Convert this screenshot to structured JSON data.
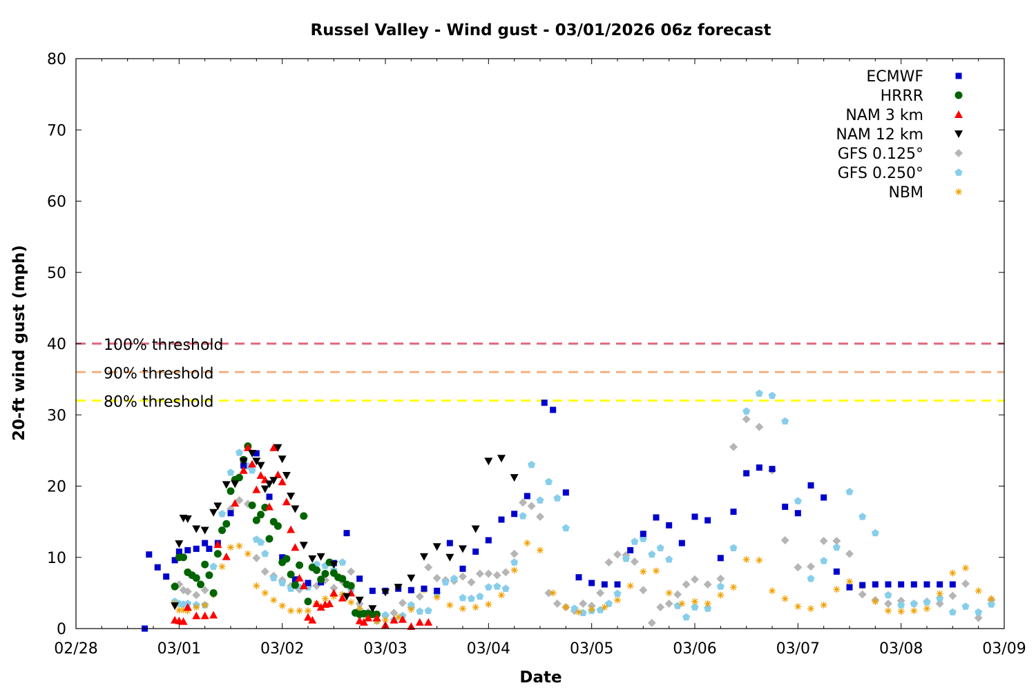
{
  "chart_data": {
    "type": "scatter",
    "title": "Russel Valley - Wind gust - 03/01/2026 06z forecast",
    "xlabel": "Date",
    "ylabel": "20-ft wind gust (mph)",
    "xlim": [
      "02/28 00:00",
      "03/09 00:00"
    ],
    "ylim": [
      0,
      80
    ],
    "x_ticks": [
      "02/28",
      "03/01",
      "03/02",
      "03/03",
      "03/04",
      "03/05",
      "03/06",
      "03/07",
      "03/08",
      "03/09"
    ],
    "y_ticks": [
      "0",
      "10",
      "20",
      "30",
      "40",
      "50",
      "60",
      "70",
      "80"
    ],
    "legend_position": "top-right",
    "thresholds": [
      {
        "label": "100% threshold",
        "value": 40,
        "color": "#e0667a"
      },
      {
        "label": "90% threshold",
        "value": 36,
        "color": "#f4b183"
      },
      {
        "label": "80% threshold",
        "value": 32,
        "color": "#ffff00"
      }
    ],
    "series": [
      {
        "name": "ECMWF",
        "marker": "square",
        "color": "#0000cc",
        "x": [
          "02/28 16:00",
          "02/28 17:00",
          "02/28 19:00",
          "02/28 21:00",
          "02/28 23:00",
          "03/01 00:00",
          "03/01 02:00",
          "03/01 04:00",
          "03/01 06:00",
          "03/01 07:00",
          "03/01 09:00",
          "03/01 12:00",
          "03/01 15:00",
          "03/01 18:00",
          "03/01 21:00",
          "03/02 00:00",
          "03/02 03:00",
          "03/02 06:00",
          "03/02 09:00",
          "03/02 12:00",
          "03/02 15:00",
          "03/02 18:00",
          "03/02 21:00",
          "03/03 00:00",
          "03/03 03:00",
          "03/03 06:00",
          "03/03 09:00",
          "03/03 12:00",
          "03/03 15:00",
          "03/03 18:00",
          "03/03 21:00",
          "03/04 00:00",
          "03/04 03:00",
          "03/04 06:00",
          "03/04 09:00",
          "03/04 13:00",
          "03/04 15:00",
          "03/04 18:00",
          "03/04 21:00",
          "03/05 00:00",
          "03/05 03:00",
          "03/05 06:00",
          "03/05 09:00",
          "03/05 12:00",
          "03/05 15:00",
          "03/05 18:00",
          "03/05 21:00",
          "03/06 00:00",
          "03/06 03:00",
          "03/06 06:00",
          "03/06 09:00",
          "03/06 12:00",
          "03/06 15:00",
          "03/06 18:00",
          "03/06 21:00",
          "03/07 00:00",
          "03/07 03:00",
          "03/07 06:00",
          "03/07 09:00",
          "03/07 12:00",
          "03/07 15:00",
          "03/07 18:00",
          "03/07 21:00",
          "03/08 00:00",
          "03/08 03:00",
          "03/08 06:00",
          "03/08 09:00",
          "03/08 12:00"
        ],
        "y": [
          0,
          10.4,
          8.6,
          7.3,
          9.6,
          10.8,
          11,
          11.2,
          12,
          11.2,
          12,
          16.2,
          22.9,
          24.6,
          18.5,
          10,
          6.9,
          6.4,
          6.5,
          9.2,
          13.4,
          7,
          5.3,
          5.3,
          5.6,
          5.4,
          5.6,
          5.3,
          12,
          8.4,
          10.8,
          12.4,
          15.3,
          16.1,
          18.6,
          31.7,
          30.7,
          19.1,
          7.2,
          6.4,
          6.2,
          6.2,
          11,
          13.3,
          15.6,
          14.5,
          12,
          15.7,
          15.2,
          9.9,
          16.4,
          21.8,
          22.6,
          22.4,
          17.1,
          16.2,
          20.1,
          18.4,
          8,
          5.8,
          6.1,
          6.2,
          6.2,
          6.2,
          6.2,
          6.2,
          6.2,
          6.2
        ]
      },
      {
        "name": "HRRR",
        "marker": "circle",
        "color": "#006400",
        "x": [
          "02/28 23:00",
          "03/01 00:00",
          "03/01 01:00",
          "03/01 02:00",
          "03/01 03:00",
          "03/01 04:00",
          "03/01 05:00",
          "03/01 06:00",
          "03/01 07:00",
          "03/01 08:00",
          "03/01 09:00",
          "03/01 10:00",
          "03/01 11:00",
          "03/01 12:00",
          "03/01 13:00",
          "03/01 14:00",
          "03/01 15:00",
          "03/01 16:00",
          "03/01 17:00",
          "03/01 18:00",
          "03/01 19:00",
          "03/01 20:00",
          "03/01 21:00",
          "03/01 22:00",
          "03/01 23:00",
          "03/02 00:00",
          "03/02 01:00",
          "03/02 02:00",
          "03/02 03:00",
          "03/02 04:00",
          "03/02 05:00",
          "03/02 06:00",
          "03/02 07:00",
          "03/02 08:00",
          "03/02 09:00",
          "03/02 10:00",
          "03/02 11:00",
          "03/02 12:00",
          "03/02 13:00",
          "03/02 14:00",
          "03/02 15:00",
          "03/02 16:00",
          "03/02 17:00",
          "03/02 18:00",
          "03/02 19:00",
          "03/02 20:00",
          "03/02 21:00",
          "03/02 22:00"
        ],
        "y": [
          5.9,
          10,
          10,
          7.9,
          7.5,
          7.1,
          6.2,
          9,
          7.5,
          5,
          10.5,
          13.8,
          14.7,
          19.3,
          20.9,
          21.2,
          23.7,
          25.6,
          17.3,
          15.2,
          16,
          17,
          12.6,
          15,
          14.4,
          9.3,
          9.8,
          7.6,
          6.1,
          8.9,
          15.8,
          3.8,
          8.6,
          8.2,
          6.9,
          7.7,
          9.3,
          7.8,
          7.2,
          7,
          6.2,
          6,
          2.2,
          2,
          2.1,
          2.1,
          2,
          2
        ]
      },
      {
        "name": "NAM 3 km",
        "marker": "triangle-up",
        "color": "#ff0000",
        "x": [
          "02/28 23:00",
          "03/01 00:00",
          "03/01 01:00",
          "03/01 02:00",
          "03/01 04:00",
          "03/01 06:00",
          "03/01 08:00",
          "03/01 09:00",
          "03/01 11:00",
          "03/01 13:00",
          "03/01 15:00",
          "03/01 16:00",
          "03/01 17:00",
          "03/01 18:00",
          "03/01 19:00",
          "03/01 20:00",
          "03/01 21:00",
          "03/01 22:00",
          "03/01 23:00",
          "03/02 00:00",
          "03/02 01:00",
          "03/02 02:00",
          "03/02 03:00",
          "03/02 04:00",
          "03/02 05:00",
          "03/02 06:00",
          "03/02 07:00",
          "03/02 08:00",
          "03/02 09:00",
          "03/02 10:00",
          "03/02 11:00",
          "03/02 12:00",
          "03/02 14:00",
          "03/02 16:00",
          "03/02 18:00",
          "03/02 19:00",
          "03/02 20:00",
          "03/02 22:00",
          "03/03 00:00",
          "03/03 02:00",
          "03/03 04:00",
          "03/03 06:00",
          "03/03 08:00",
          "03/03 10:00"
        ],
        "y": [
          1.2,
          1.1,
          1,
          3,
          1.8,
          1.8,
          1.9,
          11.8,
          10.1,
          17.6,
          22.2,
          25.4,
          23.1,
          19.5,
          21.5,
          20.9,
          17.1,
          25.4,
          21.6,
          20.6,
          17.8,
          13.9,
          11.4,
          7.1,
          6,
          1.6,
          1.2,
          3.5,
          3,
          3.4,
          3.5,
          5,
          4.3,
          5,
          1.1,
          0.9,
          1.5,
          1.5,
          0.5,
          1.2,
          1.3,
          0.3,
          0.9,
          0.9
        ]
      },
      {
        "name": "NAM 12 km",
        "marker": "triangle-down",
        "color": "#000000",
        "x": [
          "02/28 23:00",
          "03/01 00:00",
          "03/01 01:00",
          "03/01 02:00",
          "03/01 04:00",
          "03/01 06:00",
          "03/01 08:00",
          "03/01 09:00",
          "03/01 11:00",
          "03/01 13:00",
          "03/01 15:00",
          "03/01 17:00",
          "03/01 18:00",
          "03/01 19:00",
          "03/01 20:00",
          "03/01 21:00",
          "03/01 22:00",
          "03/01 23:00",
          "03/02 00:00",
          "03/02 01:00",
          "03/02 02:00",
          "03/02 03:00",
          "03/02 05:00",
          "03/02 07:00",
          "03/02 09:00",
          "03/02 12:00",
          "03/02 15:00",
          "03/02 18:00",
          "03/02 21:00",
          "03/03 00:00",
          "03/03 03:00",
          "03/03 06:00",
          "03/03 09:00",
          "03/03 12:00",
          "03/03 15:00",
          "03/03 18:00",
          "03/03 21:00",
          "03/04 00:00",
          "03/04 03:00",
          "03/04 06:00"
        ],
        "y": [
          3.2,
          11.9,
          15.5,
          15.4,
          14,
          13.8,
          16.3,
          17.2,
          20.2,
          20.3,
          23.5,
          24.6,
          23.5,
          22.9,
          19.6,
          20.3,
          20.8,
          25.4,
          23.8,
          21.5,
          18.6,
          16.8,
          11.7,
          9.8,
          10.1,
          9,
          4.5,
          4,
          2.8,
          5.1,
          5.8,
          7.1,
          10.1,
          11.5,
          10,
          11.2,
          14,
          23.5,
          23.9,
          21.2
        ]
      },
      {
        "name": "GFS 0.125°",
        "marker": "diamond",
        "color": "#b5b5b5",
        "x": [
          "02/28 23:00",
          "03/01 00:00",
          "03/01 01:00",
          "03/01 02:00",
          "03/01 04:00",
          "03/01 06:00",
          "03/01 08:00",
          "03/01 10:00",
          "03/01 12:00",
          "03/01 14:00",
          "03/01 16:00",
          "03/01 18:00",
          "03/01 20:00",
          "03/01 22:00",
          "03/02 00:00",
          "03/02 02:00",
          "03/02 04:00",
          "03/02 06:00",
          "03/02 08:00",
          "03/02 10:00",
          "03/02 12:00",
          "03/02 14:00",
          "03/02 16:00",
          "03/02 18:00",
          "03/02 20:00",
          "03/02 22:00",
          "03/03 00:00",
          "03/03 02:00",
          "03/03 04:00",
          "03/03 06:00",
          "03/03 08:00",
          "03/03 10:00",
          "03/03 12:00",
          "03/03 14:00",
          "03/03 16:00",
          "03/03 18:00",
          "03/03 20:00",
          "03/03 22:00",
          "03/04 00:00",
          "03/04 02:00",
          "03/04 04:00",
          "03/04 06:00",
          "03/04 08:00",
          "03/04 10:00",
          "03/04 12:00",
          "03/04 14:00",
          "03/04 16:00",
          "03/04 18:00",
          "03/04 20:00",
          "03/04 22:00",
          "03/05 00:00",
          "03/05 02:00",
          "03/05 04:00",
          "03/05 06:00",
          "03/05 08:00",
          "03/05 10:00",
          "03/05 12:00",
          "03/05 14:00",
          "03/05 16:00",
          "03/05 18:00",
          "03/05 20:00",
          "03/05 22:00",
          "03/06 00:00",
          "03/06 03:00",
          "03/06 06:00",
          "03/06 09:00",
          "03/06 12:00",
          "03/06 15:00",
          "03/06 18:00",
          "03/06 21:00",
          "03/07 00:00",
          "03/07 03:00",
          "03/07 06:00",
          "03/07 09:00",
          "03/07 12:00",
          "03/07 15:00",
          "03/07 18:00",
          "03/07 21:00",
          "03/08 00:00",
          "03/08 03:00",
          "03/08 06:00",
          "03/08 09:00",
          "03/08 12:00",
          "03/08 15:00",
          "03/08 18:00",
          "03/08 21:00"
        ],
        "y": [
          6,
          6.2,
          5.4,
          5.2,
          4.7,
          5.4,
          4.8,
          13.8,
          16.8,
          18,
          17.5,
          9.9,
          8,
          7.4,
          6.8,
          6,
          5.5,
          5.9,
          6,
          6.8,
          5.7,
          6.6,
          8,
          3.5,
          2.3,
          1.1,
          1.8,
          2.2,
          3.6,
          3,
          4.5,
          8.6,
          7.1,
          6.8,
          6.7,
          7.3,
          6.5,
          7.7,
          7.7,
          7.5,
          7.9,
          10.5,
          17.7,
          17.2,
          15.7,
          5,
          3.5,
          3,
          2.5,
          3.5,
          3.2,
          5,
          9.3,
          10.4,
          10.3,
          9.4,
          5.4,
          0.8,
          3,
          3.5,
          4.8,
          6.2,
          6.9,
          6.2,
          7,
          25.5,
          29.4,
          28.3,
          22.2,
          12.4,
          8.6,
          8.7,
          12.3,
          12.3,
          10.5,
          4.8,
          4,
          3.5,
          3.9,
          3.5,
          3.8,
          3.5,
          4.6,
          6.3,
          1.5,
          4
        ]
      },
      {
        "name": "GFS 0.250°",
        "marker": "pentagon",
        "color": "#87ceeb",
        "x": [
          "02/28 23:00",
          "03/01 00:00",
          "03/01 01:00",
          "03/01 02:00",
          "03/01 04:00",
          "03/01 06:00",
          "03/01 08:00",
          "03/01 10:00",
          "03/01 12:00",
          "03/01 14:00",
          "03/01 15:00",
          "03/01 16:00",
          "03/01 17:00",
          "03/01 18:00",
          "03/01 19:00",
          "03/01 20:00",
          "03/01 22:00",
          "03/02 00:00",
          "03/02 02:00",
          "03/02 04:00",
          "03/02 06:00",
          "03/02 08:00",
          "03/02 10:00",
          "03/02 12:00",
          "03/02 14:00",
          "03/02 16:00",
          "03/02 18:00",
          "03/02 20:00",
          "03/02 22:00",
          "03/03 00:00",
          "03/03 02:00",
          "03/03 04:00",
          "03/03 06:00",
          "03/03 08:00",
          "03/03 10:00",
          "03/03 12:00",
          "03/03 14:00",
          "03/03 16:00",
          "03/03 18:00",
          "03/03 20:00",
          "03/03 22:00",
          "03/04 00:00",
          "03/04 02:00",
          "03/04 04:00",
          "03/04 06:00",
          "03/04 08:00",
          "03/04 10:00",
          "03/04 12:00",
          "03/04 14:00",
          "03/04 16:00",
          "03/04 18:00",
          "03/04 20:00",
          "03/04 22:00",
          "03/05 00:00",
          "03/05 02:00",
          "03/05 04:00",
          "03/05 06:00",
          "03/05 08:00",
          "03/05 10:00",
          "03/05 12:00",
          "03/05 14:00",
          "03/05 16:00",
          "03/05 18:00",
          "03/05 20:00",
          "03/05 22:00",
          "03/06 00:00",
          "03/06 03:00",
          "03/06 06:00",
          "03/06 09:00",
          "03/06 12:00",
          "03/06 15:00",
          "03/06 18:00",
          "03/06 21:00",
          "03/07 00:00",
          "03/07 03:00",
          "03/07 06:00",
          "03/07 09:00",
          "03/07 12:00",
          "03/07 15:00",
          "03/07 18:00",
          "03/07 21:00",
          "03/08 00:00",
          "03/08 03:00",
          "03/08 06:00",
          "03/08 09:00",
          "03/08 12:00",
          "03/08 15:00",
          "03/08 18:00",
          "03/08 21:00"
        ],
        "y": [
          3.8,
          3.5,
          3.4,
          3.5,
          3.3,
          3.3,
          8.7,
          16.1,
          21.9,
          24.7,
          22.8,
          22.8,
          22.2,
          12.5,
          12.1,
          10.5,
          7.1,
          6.4,
          5.6,
          5.8,
          5.8,
          9,
          8.8,
          8.2,
          9.3,
          5.4,
          2.6,
          1.8,
          1.1,
          1.9,
          1.2,
          1.8,
          3.3,
          2.4,
          2.5,
          4.9,
          6.5,
          7,
          4.3,
          4.2,
          4.5,
          5.8,
          5.9,
          5.6,
          9.3,
          15.8,
          23,
          18,
          20.6,
          18.3,
          14.1,
          2.8,
          2.2,
          2.5,
          2.6,
          3.5,
          4.9,
          9.8,
          12.2,
          12.6,
          10.4,
          11.3,
          9.7,
          3.2,
          1.6,
          3,
          2.8,
          5.9,
          11.3,
          30.5,
          33,
          32.7,
          29.1,
          17.9,
          7,
          9.5,
          11.4,
          19.2,
          15.7,
          13.4,
          4.7,
          3.3,
          3.5,
          3.7,
          4.2,
          2.3,
          3.1,
          2.3,
          3.4
        ]
      },
      {
        "name": "NBM",
        "marker": "asterisk",
        "color": "#f0a000",
        "x": [
          "02/28 23:00",
          "03/01 00:00",
          "03/01 01:00",
          "03/01 02:00",
          "03/01 04:00",
          "03/01 06:00",
          "03/01 08:00",
          "03/01 10:00",
          "03/01 12:00",
          "03/01 14:00",
          "03/01 16:00",
          "03/01 18:00",
          "03/01 20:00",
          "03/01 22:00",
          "03/02 00:00",
          "03/02 02:00",
          "03/02 04:00",
          "03/02 06:00",
          "03/02 08:00",
          "03/02 10:00",
          "03/02 12:00",
          "03/02 14:00",
          "03/02 16:00",
          "03/02 18:00",
          "03/02 20:00",
          "03/02 22:00",
          "03/03 00:00",
          "03/03 03:00",
          "03/03 06:00",
          "03/03 09:00",
          "03/03 12:00",
          "03/03 15:00",
          "03/03 18:00",
          "03/03 21:00",
          "03/04 00:00",
          "03/04 03:00",
          "03/04 06:00",
          "03/04 09:00",
          "03/04 12:00",
          "03/04 15:00",
          "03/04 18:00",
          "03/04 21:00",
          "03/05 00:00",
          "03/05 03:00",
          "03/05 06:00",
          "03/05 09:00",
          "03/05 12:00",
          "03/05 15:00",
          "03/05 18:00",
          "03/05 21:00",
          "03/06 00:00",
          "03/06 03:00",
          "03/06 06:00",
          "03/06 09:00",
          "03/06 12:00",
          "03/06 15:00",
          "03/06 18:00",
          "03/06 21:00",
          "03/07 00:00",
          "03/07 03:00",
          "03/07 06:00",
          "03/07 09:00",
          "03/07 12:00",
          "03/07 15:00",
          "03/07 18:00",
          "03/07 21:00",
          "03/08 00:00",
          "03/08 03:00",
          "03/08 06:00",
          "03/08 09:00",
          "03/08 12:00",
          "03/08 15:00",
          "03/08 18:00",
          "03/08 21:00"
        ],
        "y": [
          3.5,
          2.6,
          2.6,
          2.5,
          3,
          3.3,
          4.8,
          8.7,
          11.4,
          11.6,
          10.5,
          6,
          5,
          4,
          3.2,
          2.5,
          2.5,
          2.5,
          3.5,
          4.2,
          4.5,
          4.8,
          3.7,
          2.8,
          1.5,
          1,
          1.2,
          1.6,
          2.7,
          5.4,
          4.4,
          3.3,
          2.8,
          3,
          3.4,
          4.7,
          8.2,
          12,
          11,
          5,
          3,
          2.3,
          2.7,
          3,
          4,
          6,
          8,
          8.1,
          5,
          3.5,
          3.8,
          3.5,
          4.7,
          5.8,
          9.7,
          9.6,
          5.3,
          4.2,
          3.1,
          2.8,
          3.3,
          5.5,
          6.6,
          6,
          3.8,
          2.5,
          2.4,
          2.5,
          2.8,
          4.9,
          7.8,
          8.5,
          5.3,
          4.2
        ]
      }
    ]
  }
}
